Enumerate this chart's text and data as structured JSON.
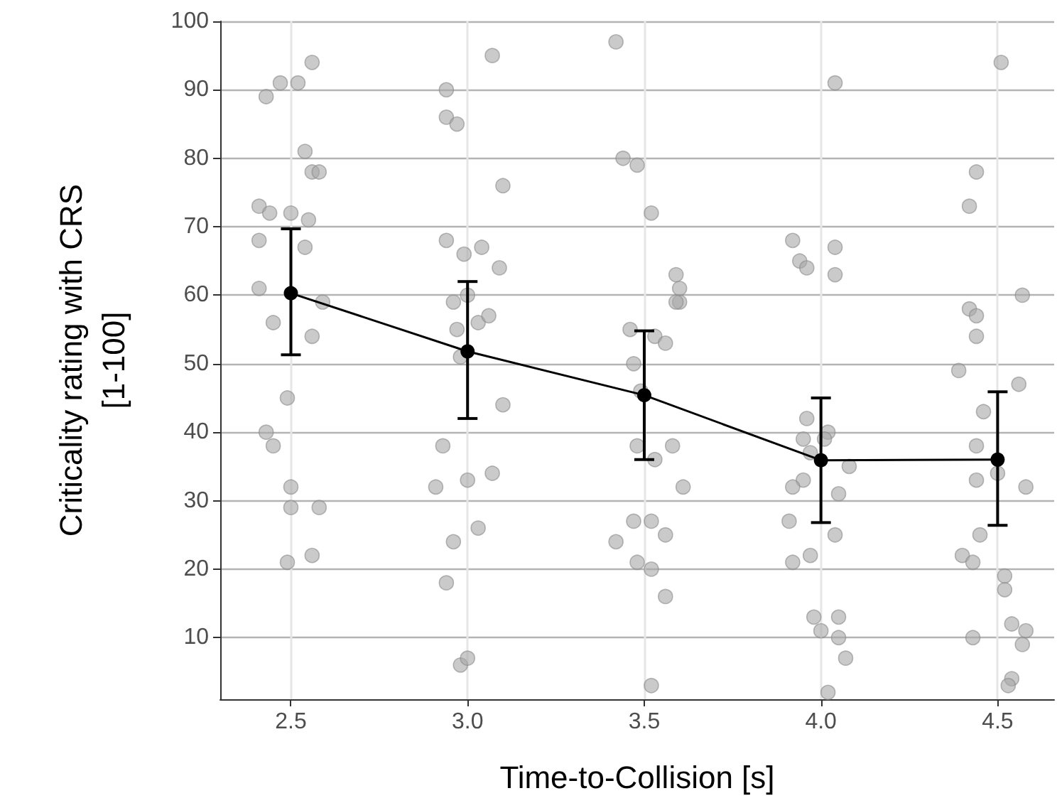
{
  "chart_data": {
    "type": "scatter",
    "xlabel": "Time-to-Collision [s]",
    "ylabel": "Criticality rating with CRS\n[1-100]",
    "xlim": [
      2.3,
      4.66
    ],
    "ylim": [
      1,
      100
    ],
    "xticks": [
      2.5,
      {
        "value": 3,
        "label": "3.0"
      },
      3.5,
      {
        "value": 4,
        "label": "4.0"
      },
      4.5
    ],
    "yticks": [
      10,
      20,
      30,
      40,
      50,
      60,
      70,
      80,
      90,
      100
    ],
    "grid": true,
    "series": [
      {
        "color": "#a6a6a6",
        "marker": "circle",
        "x": [
          2.43,
          2.47,
          2.52,
          2.56,
          2.54,
          2.56,
          2.58,
          2.41,
          2.44,
          2.5,
          2.55,
          2.41,
          2.54,
          2.41,
          2.59,
          2.45,
          2.56,
          2.49,
          2.43,
          2.45,
          2.5,
          2.5,
          2.58,
          2.49,
          2.56,
          3.07,
          2.94,
          2.94,
          2.97,
          3.1,
          2.94,
          2.99,
          3.04,
          3.09,
          2.96,
          3.0,
          3.03,
          3.06,
          2.97,
          2.98,
          3.1,
          2.93,
          2.91,
          3.0,
          3.07,
          3.03,
          2.96,
          2.94,
          2.98,
          3.0,
          3.42,
          3.44,
          3.48,
          3.52,
          3.59,
          3.6,
          3.6,
          3.59,
          3.46,
          3.53,
          3.56,
          3.47,
          3.49,
          3.48,
          3.58,
          3.53,
          3.61,
          3.52,
          3.47,
          3.42,
          3.56,
          3.48,
          3.52,
          3.56,
          3.52,
          4.04,
          3.92,
          3.94,
          3.96,
          4.04,
          4.04,
          3.96,
          3.95,
          3.97,
          4.02,
          4.01,
          4.08,
          3.95,
          4.05,
          3.92,
          3.91,
          4.04,
          3.97,
          3.92,
          3.98,
          4.05,
          4.0,
          4.05,
          4.07,
          4.02,
          4.51,
          4.44,
          4.42,
          4.57,
          4.42,
          4.44,
          4.44,
          4.39,
          4.56,
          4.46,
          4.44,
          4.44,
          4.5,
          4.58,
          4.45,
          4.4,
          4.43,
          4.52,
          4.52,
          4.43,
          4.54,
          4.58,
          4.57,
          4.54,
          4.53
        ],
        "values": [
          89,
          91,
          91,
          94,
          81,
          78,
          78,
          73,
          72,
          72,
          71,
          68,
          67,
          61,
          59,
          56,
          54,
          45,
          40,
          38,
          32,
          29,
          29,
          21,
          22,
          95,
          90,
          86,
          85,
          76,
          68,
          66,
          67,
          64,
          59,
          60,
          56,
          57,
          55,
          51,
          44,
          38,
          32,
          33,
          34,
          26,
          24,
          18,
          6,
          7,
          97,
          80,
          79,
          72,
          63,
          61,
          59,
          59,
          55,
          54,
          53,
          50,
          46,
          38,
          38,
          36,
          32,
          27,
          27,
          24,
          25,
          21,
          20,
          16,
          3,
          91,
          68,
          65,
          64,
          67,
          63,
          42,
          39,
          37,
          40,
          39,
          35,
          33,
          31,
          32,
          27,
          25,
          22,
          21,
          13,
          13,
          11,
          10,
          7,
          2,
          94,
          78,
          73,
          60,
          58,
          57,
          54,
          49,
          47,
          43,
          38,
          33,
          34,
          32,
          25,
          22,
          21,
          19,
          17,
          10,
          12,
          11,
          9,
          4,
          3
        ]
      },
      {
        "type": "line",
        "color": "#000000",
        "marker": "circle",
        "line_style": "solid",
        "x": [
          2.5,
          3.0,
          3.5,
          4.0,
          4.5
        ],
        "values": [
          60.3,
          51.8,
          45.4,
          35.9,
          36.0
        ],
        "errors": [
          [
            51.3,
            69.7
          ],
          [
            42,
            62
          ],
          [
            36,
            54.8
          ],
          [
            26.8,
            45
          ],
          [
            26.4,
            45.9
          ]
        ]
      }
    ]
  }
}
